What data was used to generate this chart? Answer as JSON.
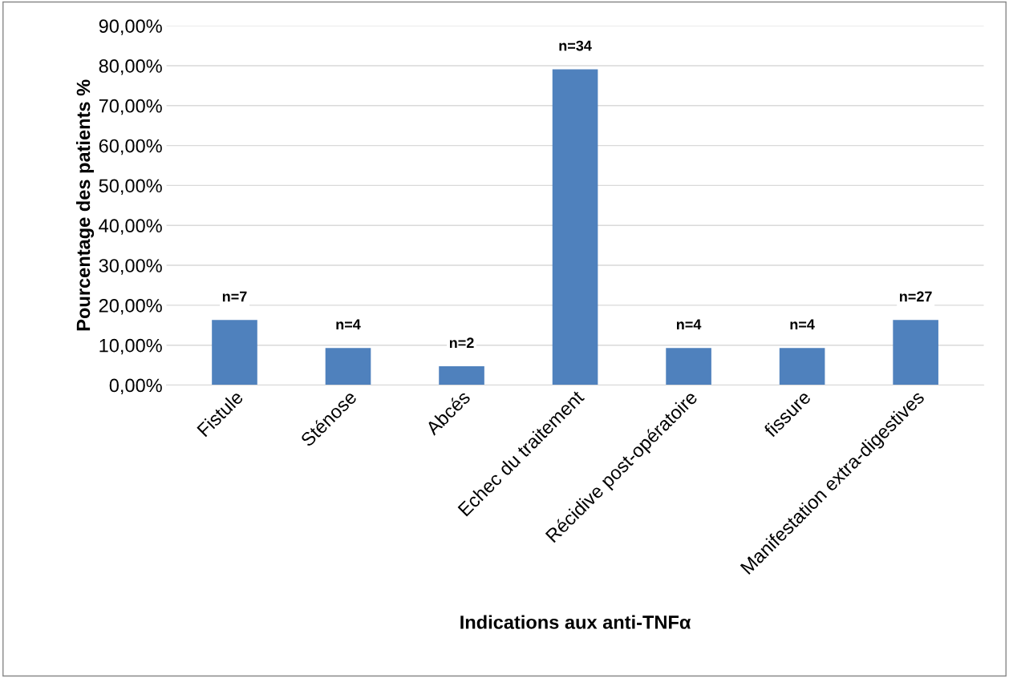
{
  "chart_data": {
    "type": "bar",
    "xlabel": "Indications aux anti-TNFα",
    "ylabel": "Pourcentage des patients %",
    "categories": [
      "Fistule",
      "Sténose",
      "Abcés",
      "Echec du traitement",
      "Récidive post-opératoire",
      "fissure",
      "Manifestation extra-digestives"
    ],
    "values": [
      16.3,
      9.3,
      4.7,
      79.1,
      9.3,
      9.3,
      16.3
    ],
    "annotations": [
      {
        "text": "n=7",
        "x": "Fistule",
        "y": 16.3
      },
      {
        "text": "n=4",
        "x": "Sténose",
        "y": 9.3
      },
      {
        "text": "n=2",
        "x": "Abcés",
        "y": 4.7
      },
      {
        "text": "n=34",
        "x": "Echec du traitement",
        "y": 79.1
      },
      {
        "text": "n=4",
        "x": "Récidive post-opératoire",
        "y": 9.3
      },
      {
        "text": "n=4",
        "x": "fissure",
        "y": 9.3
      },
      {
        "text": "n=27",
        "x": "Manifestation extra-digestives",
        "y": 16.3
      }
    ],
    "color": "#4f81bd",
    "ylim": [
      0,
      90
    ],
    "yticks": [
      {
        "value": 0,
        "label": "0,00%"
      },
      {
        "value": 10,
        "label": "10,00%"
      },
      {
        "value": 20,
        "label": "20,00%"
      },
      {
        "value": 30,
        "label": "30,00%"
      },
      {
        "value": 40,
        "label": "40,00%"
      },
      {
        "value": 50,
        "label": "50,00%"
      },
      {
        "value": 60,
        "label": "60,00%"
      },
      {
        "value": 70,
        "label": "70,00%"
      },
      {
        "value": 80,
        "label": "80,00%"
      },
      {
        "value": 90,
        "label": "90,00%"
      }
    ],
    "grid": "y",
    "legend": false
  }
}
